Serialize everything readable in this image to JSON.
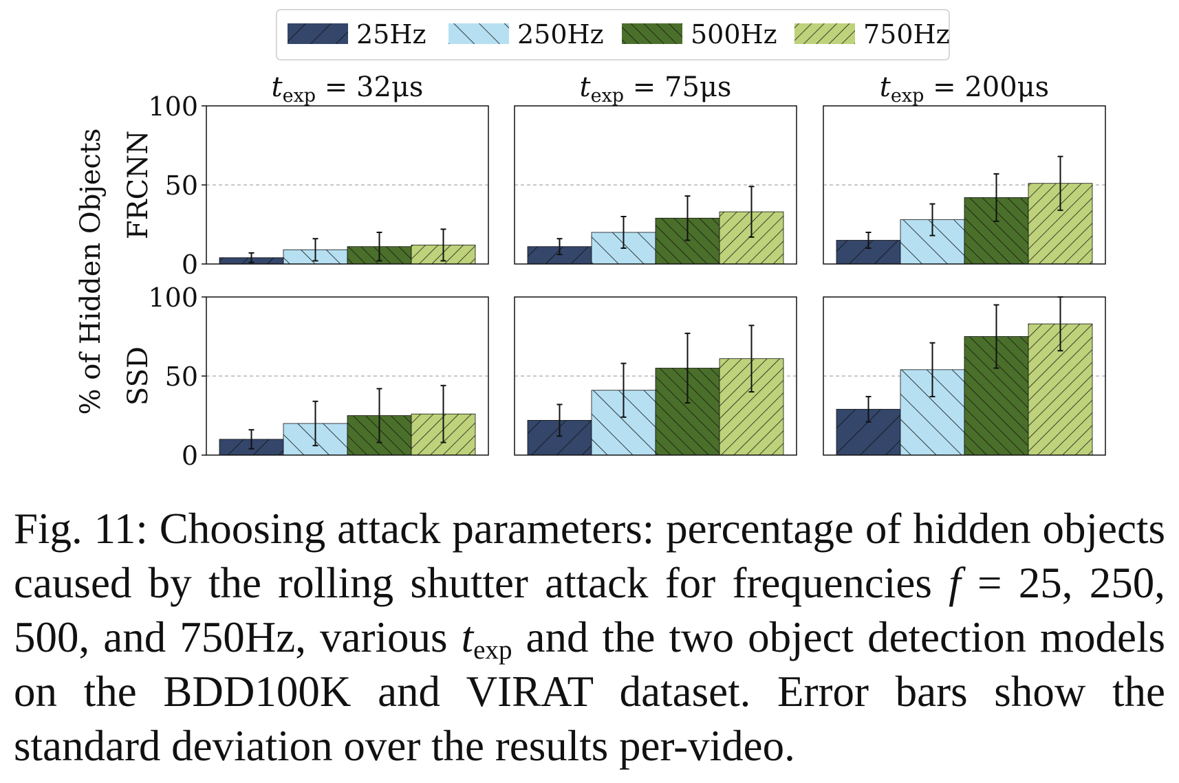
{
  "chart_data": {
    "type": "bar",
    "ylabel": "% of Hidden Objects",
    "ylim": [
      0,
      100
    ],
    "yticks": [
      "0",
      "50",
      "100"
    ],
    "grid": "dashed horizontal line at 50",
    "legend": {
      "placement": "top-center",
      "entries": [
        "25Hz",
        "250Hz",
        "500Hz",
        "750Hz"
      ]
    },
    "colors": {
      "25Hz": "#34466a",
      "250Hz": "#b6e0f2",
      "500Hz": "#4a6f2a",
      "750Hz": "#bdd27a"
    },
    "hatches": {
      "25Hz": "forward",
      "250Hz": "backward",
      "500Hz": "backward-dense",
      "750Hz": "forward-dense"
    },
    "columns": [
      {
        "label_var": "t",
        "label_sub": "exp",
        "label_rest": " = 32μs"
      },
      {
        "label_var": "t",
        "label_sub": "exp",
        "label_rest": " = 75μs"
      },
      {
        "label_var": "t",
        "label_sub": "exp",
        "label_rest": " = 200μs"
      }
    ],
    "rows": [
      {
        "model": "FRCNN",
        "panels": [
          {
            "values": [
              4,
              9,
              11,
              12
            ],
            "err": [
              3,
              7,
              9,
              10
            ]
          },
          {
            "values": [
              11,
              20,
              29,
              33
            ],
            "err": [
              5,
              10,
              14,
              16
            ]
          },
          {
            "values": [
              15,
              28,
              42,
              51
            ],
            "err": [
              5,
              10,
              15,
              17
            ]
          }
        ]
      },
      {
        "model": "SSD",
        "panels": [
          {
            "values": [
              10,
              20,
              25,
              26
            ],
            "err": [
              6,
              14,
              17,
              18
            ]
          },
          {
            "values": [
              22,
              41,
              55,
              61
            ],
            "err": [
              10,
              17,
              22,
              21
            ]
          },
          {
            "values": [
              29,
              54,
              75,
              83
            ],
            "err": [
              8,
              17,
              20,
              17
            ]
          }
        ]
      }
    ]
  },
  "caption": {
    "p1": "Fig. 11: Choosing attack parameters: percentage of hidden objects caused by the rolling shutter attack for frequencies ",
    "f": "f",
    "p2": " = 25, 250, 500, and 750Hz, various ",
    "t": "t",
    "sub": "exp",
    "p3": " and the two object detection models on the BDD100K and VIRAT dataset. Error bars show the standard deviation over the results per-video."
  }
}
